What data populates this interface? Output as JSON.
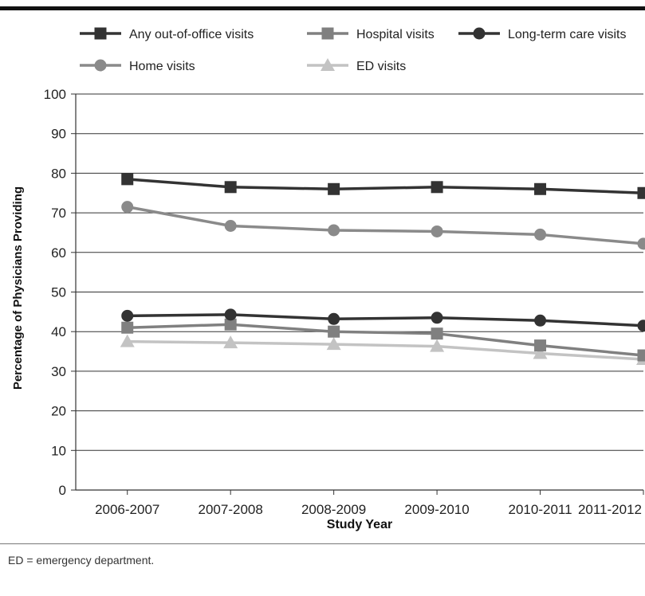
{
  "footnote": "ED = emergency department.",
  "chart_data": {
    "type": "line",
    "title": "",
    "xlabel": "Study Year",
    "ylabel": "Percentage of Physicians Providing",
    "categories": [
      "2006-2007",
      "2007-2008",
      "2008-2009",
      "2009-2010",
      "2010-2011",
      "2011-2012"
    ],
    "ylim": [
      0,
      100
    ],
    "yticks": [
      0,
      10,
      20,
      30,
      40,
      50,
      60,
      70,
      80,
      90,
      100
    ],
    "grid": "horizontal",
    "legend": "top",
    "series": [
      {
        "name": "Any out-of-office visits",
        "marker": "square",
        "color": "#333333",
        "values": [
          78.5,
          76.5,
          76.0,
          76.5,
          76.0,
          75.0
        ]
      },
      {
        "name": "Hospital visits",
        "marker": "square",
        "color": "#808080",
        "values": [
          41.0,
          41.8,
          40.0,
          39.5,
          36.5,
          34.0
        ]
      },
      {
        "name": "Long-term care visits",
        "marker": "circle",
        "color": "#333333",
        "values": [
          44.0,
          44.3,
          43.2,
          43.5,
          42.8,
          41.5
        ]
      },
      {
        "name": "Home visits",
        "marker": "circle",
        "color": "#8a8a8a",
        "values": [
          71.5,
          66.7,
          65.6,
          65.3,
          64.5,
          62.2
        ]
      },
      {
        "name": "ED visits",
        "marker": "triangle",
        "color": "#c3c3c3",
        "values": [
          37.5,
          37.2,
          36.8,
          36.3,
          34.5,
          33.0
        ]
      }
    ]
  }
}
